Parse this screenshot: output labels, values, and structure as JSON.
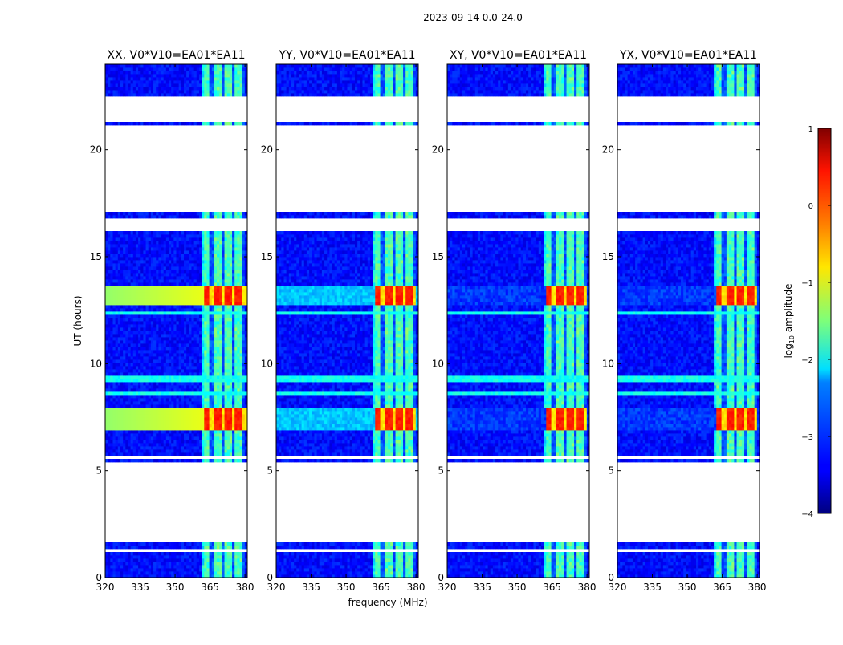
{
  "chart_data": {
    "type": "heatmap",
    "title": "2023-09-14 0.0-24.0",
    "xlabel": "frequency (MHz)",
    "ylabel": "UT (hours)",
    "xlim": [
      320,
      381
    ],
    "ylim": [
      0,
      24
    ],
    "x_ticks": [
      320,
      335,
      350,
      365,
      380
    ],
    "y_ticks": [
      0,
      5,
      10,
      15,
      20
    ],
    "colorbar": {
      "label_prefix": "log",
      "label_sub": "10",
      "label_suffix": " amplitude",
      "range": [
        -4,
        1
      ],
      "ticks": [
        -4,
        -3,
        -2,
        -1,
        0,
        1
      ],
      "tick_labels": [
        "−4",
        "−3",
        "−2",
        "−1",
        "0",
        "1"
      ],
      "colormap": "jet"
    },
    "panels": [
      {
        "title": "XX, V0*V10=EA01*EA11",
        "polarization": "XX"
      },
      {
        "title": "YY, V0*V10=EA01*EA11",
        "polarization": "YY"
      },
      {
        "title": "XY, V0*V10=EA01*EA11",
        "polarization": "XY"
      },
      {
        "title": "YX, V0*V10=EA01*EA11",
        "polarization": "YX"
      }
    ],
    "rfi_channels_mhz": [
      363.0,
      368.0,
      373.0,
      377.5
    ],
    "flagged_ut_ranges": [
      [
        1.0,
        1.1
      ],
      [
        1.25,
        1.35
      ],
      [
        1.6,
        2.35
      ],
      [
        2.4,
        5.4
      ],
      [
        5.55,
        5.65
      ],
      [
        15.1,
        15.15
      ],
      [
        16.25,
        16.8
      ],
      [
        17.05,
        19.0
      ],
      [
        19.0,
        21.1
      ],
      [
        21.3,
        22.5
      ]
    ],
    "bright_ut_ranges": [
      [
        6.95,
        7.9
      ],
      [
        12.8,
        13.6
      ]
    ]
  }
}
